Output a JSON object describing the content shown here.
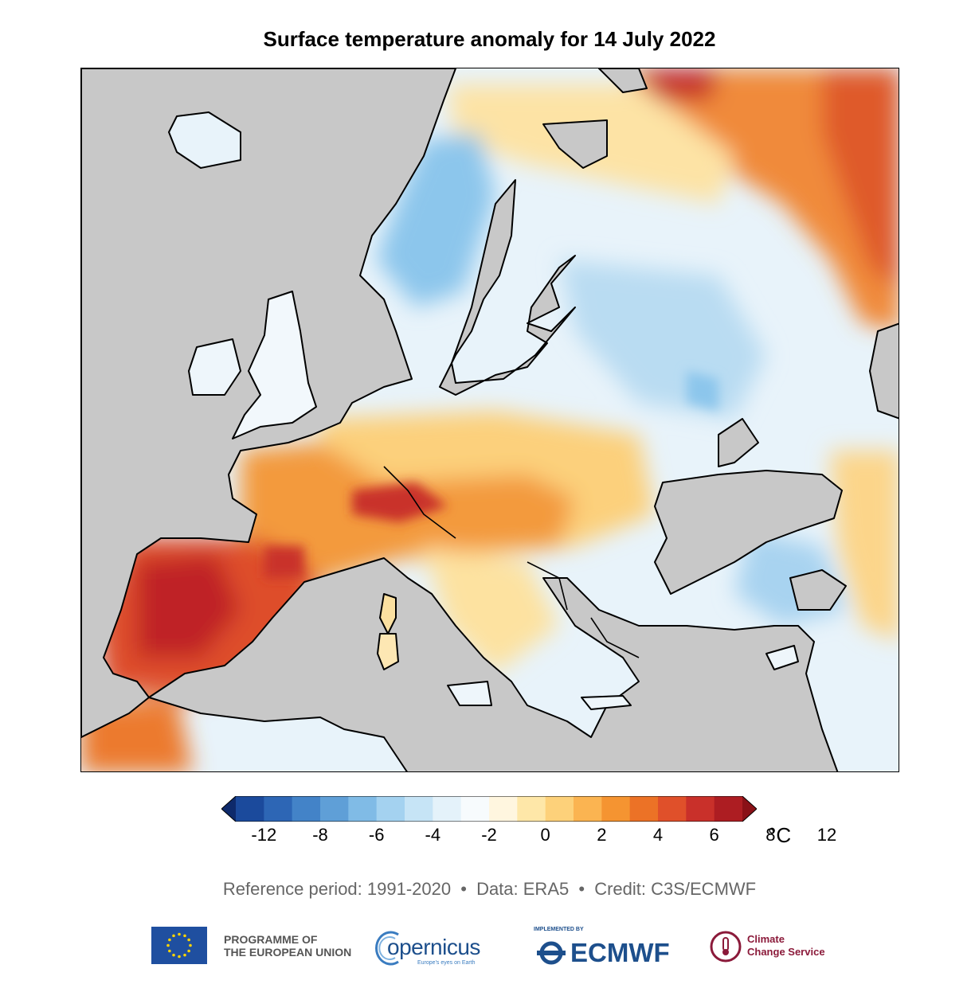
{
  "title": "Surface temperature anomaly for 14 July 2022",
  "map": {
    "land_no_data_color": "#c8c8c8",
    "region": "Europe",
    "warm_regions": [
      "Iberian Peninsula",
      "France",
      "Northern Africa",
      "Northwestern Russia"
    ],
    "cool_regions": [
      "Scandinavia",
      "Eastern Europe",
      "Ukraine"
    ]
  },
  "colorbar": {
    "unit": "°C",
    "tick_labels": [
      "-12",
      "-8",
      "-6",
      "-4",
      "-2",
      "0",
      "2",
      "4",
      "6",
      "8",
      "12"
    ],
    "colors": [
      "#0e2a6b",
      "#1b4a9c",
      "#2d66b5",
      "#4383c8",
      "#5f9fd7",
      "#80bbe6",
      "#a4d2f0",
      "#c6e4f6",
      "#e4f2fa",
      "#f7fbfd",
      "#fff6df",
      "#fee7a8",
      "#fdd17a",
      "#fbb451",
      "#f59431",
      "#ec7226",
      "#e0502a",
      "#c9302a",
      "#ad1d22",
      "#8a1117"
    ]
  },
  "footer": {
    "reference": "Reference period: 1991-2020",
    "data": "Data: ERA5",
    "credit": "Credit: C3S/ECMWF",
    "separator": "•"
  },
  "logos": {
    "eu_line1": "PROGRAMME OF",
    "eu_line2": "THE EUROPEAN UNION",
    "copernicus": "opernicus",
    "copernicus_tag": "Europe's eyes on Earth",
    "ecmwf_small": "IMPLEMENTED BY",
    "ecmwf": "ECMWF",
    "c3s_line1": "Climate",
    "c3s_line2": "Change Service"
  }
}
